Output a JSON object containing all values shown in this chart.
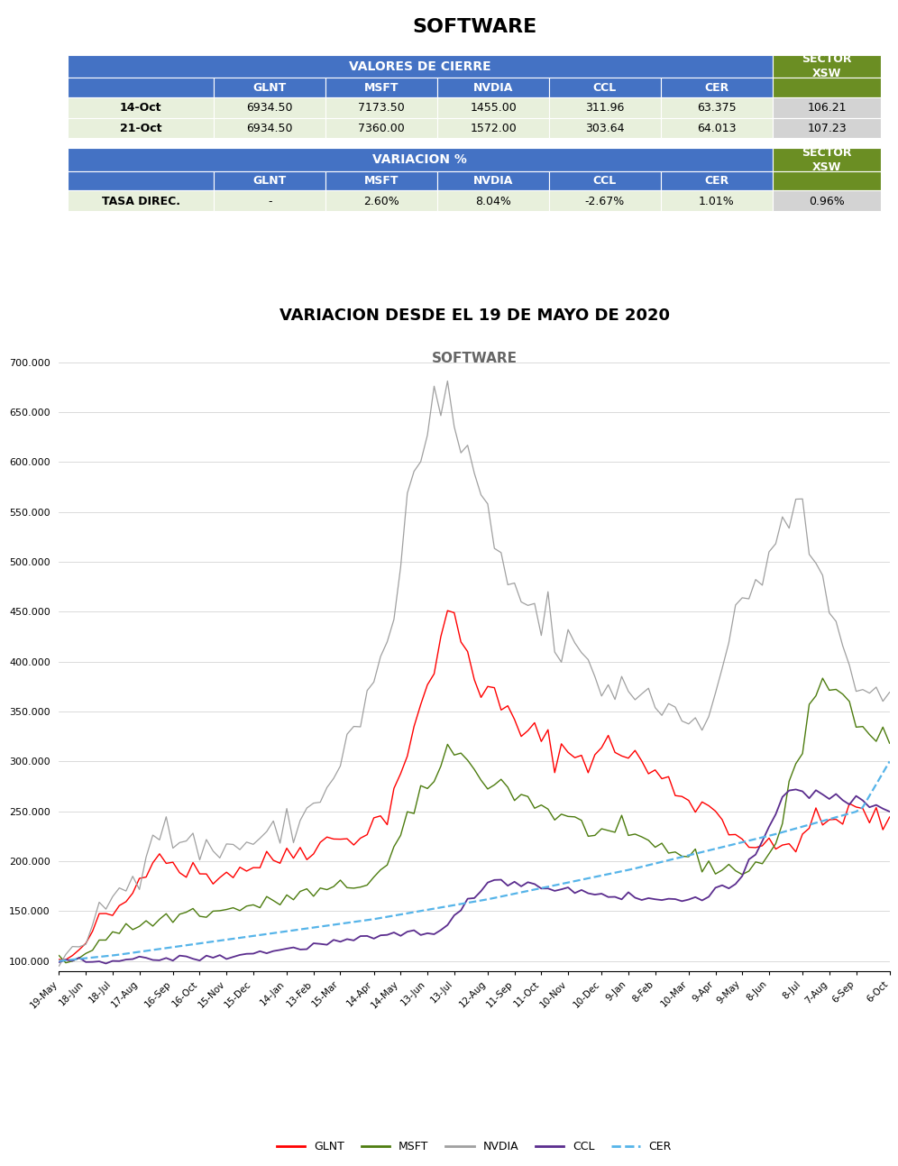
{
  "title": "SOFTWARE",
  "table1_header_main": "VALORES DE CIERRE",
  "table1_rows": [
    [
      "14-Oct",
      "6934.50",
      "7173.50",
      "1455.00",
      "311.96",
      "63.375",
      "106.21"
    ],
    [
      "21-Oct",
      "6934.50",
      "7360.00",
      "1572.00",
      "303.64",
      "64.013",
      "107.23"
    ]
  ],
  "table2_header_main": "VARIACION %",
  "table2_rows": [
    [
      "TASA DIREC.",
      "-",
      "2.60%",
      "8.04%",
      "-2.67%",
      "1.01%",
      "0.96%"
    ]
  ],
  "chart_title": "VARIACION DESDE EL 19 DE MAYO DE 2020",
  "chart_subtitle": "SOFTWARE",
  "header_blue": "#4472C4",
  "header_green": "#6B8E23",
  "row_light": "#E8F0DC",
  "row_gray": "#D3D3D3",
  "colors": {
    "GLNT": "#FF0000",
    "MSFT": "#4D7C0F",
    "NVDIA": "#A0A0A0",
    "CCL": "#5B2D8E",
    "CER": "#56B4E9"
  },
  "y_ticks": [
    100000,
    150000,
    200000,
    250000,
    300000,
    350000,
    400000,
    450000,
    500000,
    550000,
    600000,
    650000,
    700000
  ],
  "x_labels": [
    "19-May",
    "18-Jun",
    "18-Jul",
    "17-Aug",
    "16-Sep",
    "16-Oct",
    "15-Nov",
    "15-Dec",
    "14-Jan",
    "13-Feb",
    "15-Mar",
    "14-Apr",
    "14-May",
    "13-Jun",
    "13-Jul",
    "12-Aug",
    "11-Sep",
    "11-Oct",
    "10-Nov",
    "10-Dec",
    "9-Jan",
    "8-Feb",
    "10-Mar",
    "9-Apr",
    "9-May",
    "8-Jun",
    "8-Jul",
    "7-Aug",
    "6-Sep",
    "6-Oct"
  ]
}
